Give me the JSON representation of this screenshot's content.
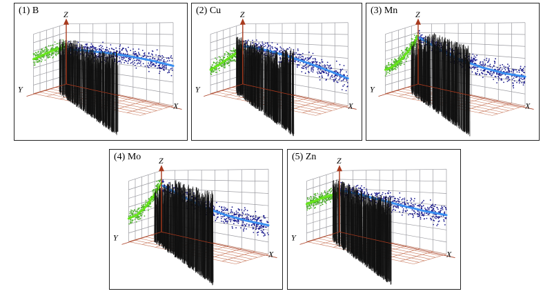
{
  "figure": {
    "description_hidden": false
  },
  "colors": {
    "green_points": "#4caf2a",
    "green_curve": "#66e61a",
    "blue_points": "#1a1a8c",
    "blue_curve": "#3a8ff0",
    "grid": "#9a9aa0",
    "floor_grid": "#c8775a",
    "z_axis": "#a83a1e",
    "bars": "#111111"
  },
  "chart_data": [
    {
      "type": "scatter",
      "title": "(1) B",
      "axis_labels": {
        "x": "X",
        "y": "Y",
        "z": "Z"
      },
      "left_wall_curve": [
        0.58,
        0.6,
        0.62,
        0.63,
        0.63
      ],
      "right_wall_curve": [
        0.58,
        0.58,
        0.57,
        0.55,
        0.52,
        0.48
      ],
      "bar_peak_levels": [
        0.8,
        0.72,
        0.55,
        0.6
      ]
    },
    {
      "type": "scatter",
      "title": "(2) Cu",
      "axis_labels": {
        "x": "X",
        "y": "Y",
        "z": "Z"
      },
      "left_wall_curve": [
        0.4,
        0.44,
        0.49,
        0.54,
        0.57
      ],
      "right_wall_curve": [
        0.63,
        0.6,
        0.54,
        0.47,
        0.4,
        0.33
      ],
      "bar_peak_levels": [
        0.82,
        0.7,
        0.55,
        0.62
      ]
    },
    {
      "type": "scatter",
      "title": "(3) Mn",
      "axis_labels": {
        "x": "X",
        "y": "Y",
        "z": "Z"
      },
      "left_wall_curve": [
        0.4,
        0.42,
        0.5,
        0.62,
        0.8
      ],
      "right_wall_curve": [
        0.78,
        0.6,
        0.47,
        0.4,
        0.36,
        0.35
      ],
      "bar_peak_levels": [
        0.7,
        0.88,
        0.75,
        0.65
      ]
    },
    {
      "type": "scatter",
      "title": "(4) Mo",
      "axis_labels": {
        "x": "X",
        "y": "Y",
        "z": "Z"
      },
      "left_wall_curve": [
        0.38,
        0.4,
        0.48,
        0.62,
        0.8
      ],
      "right_wall_curve": [
        0.76,
        0.6,
        0.47,
        0.4,
        0.36,
        0.34
      ],
      "bar_peak_levels": [
        0.72,
        0.86,
        0.75,
        0.68
      ]
    },
    {
      "type": "scatter",
      "title": "(5) Zn",
      "axis_labels": {
        "x": "X",
        "y": "Y",
        "z": "Z"
      },
      "left_wall_curve": [
        0.62,
        0.63,
        0.64,
        0.64,
        0.64
      ],
      "right_wall_curve": [
        0.68,
        0.63,
        0.57,
        0.52,
        0.48,
        0.46
      ],
      "bar_peak_levels": [
        0.88,
        0.78,
        0.62,
        0.6
      ]
    }
  ]
}
